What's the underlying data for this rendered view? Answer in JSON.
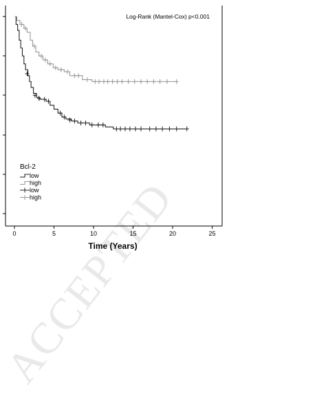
{
  "watermark": "ACCEPTED",
  "chart_data": {
    "type": "line",
    "subtype": "kaplan-meier",
    "xlabel": "Time (Years)",
    "ylabel": "",
    "xlim": [
      0,
      25
    ],
    "xticks": [
      0,
      5,
      10,
      15,
      20,
      25
    ],
    "ylim": [
      0,
      1
    ],
    "annotation": "Log-Rank (Mantel-Cox) p<0.001",
    "legend": {
      "title": "Bcl-2",
      "position": "bottom-left",
      "entries": [
        {
          "label": "low",
          "style": "step",
          "color": "#222222"
        },
        {
          "label": "high",
          "style": "step",
          "color": "#999999"
        },
        {
          "label": "low",
          "style": "censored",
          "color": "#222222"
        },
        {
          "label": "high",
          "style": "censored",
          "color": "#999999"
        }
      ]
    },
    "series": [
      {
        "name": "low",
        "color": "#222222",
        "steps": [
          [
            0,
            1.0
          ],
          [
            0.2,
            0.96
          ],
          [
            0.4,
            0.93
          ],
          [
            0.6,
            0.88
          ],
          [
            0.8,
            0.84
          ],
          [
            1.0,
            0.8
          ],
          [
            1.2,
            0.76
          ],
          [
            1.4,
            0.73
          ],
          [
            1.7,
            0.7
          ],
          [
            1.9,
            0.67
          ],
          [
            2.1,
            0.64
          ],
          [
            2.4,
            0.61
          ],
          [
            2.8,
            0.59
          ],
          [
            3.2,
            0.58
          ],
          [
            4.0,
            0.57
          ],
          [
            4.5,
            0.55
          ],
          [
            5.0,
            0.53
          ],
          [
            5.5,
            0.51
          ],
          [
            6.0,
            0.49
          ],
          [
            6.5,
            0.48
          ],
          [
            7.2,
            0.47
          ],
          [
            8.0,
            0.46
          ],
          [
            9.5,
            0.45
          ],
          [
            11.5,
            0.44
          ],
          [
            12.5,
            0.43
          ],
          [
            21.8,
            0.43
          ]
        ],
        "censored": [
          [
            1.6,
            0.71
          ],
          [
            2.6,
            0.6
          ],
          [
            3.1,
            0.585
          ],
          [
            3.8,
            0.58
          ],
          [
            4.3,
            0.57
          ],
          [
            5.8,
            0.51
          ],
          [
            6.3,
            0.49
          ],
          [
            7.0,
            0.475
          ],
          [
            7.6,
            0.47
          ],
          [
            8.4,
            0.46
          ],
          [
            9.0,
            0.46
          ],
          [
            9.8,
            0.45
          ],
          [
            10.6,
            0.45
          ],
          [
            11.2,
            0.45
          ],
          [
            12.9,
            0.43
          ],
          [
            13.4,
            0.43
          ],
          [
            14.0,
            0.43
          ],
          [
            14.6,
            0.43
          ],
          [
            15.3,
            0.43
          ],
          [
            16.0,
            0.43
          ],
          [
            17.1,
            0.43
          ],
          [
            17.9,
            0.43
          ],
          [
            18.7,
            0.43
          ],
          [
            19.6,
            0.43
          ],
          [
            20.5,
            0.43
          ],
          [
            21.8,
            0.43
          ]
        ]
      },
      {
        "name": "high",
        "color": "#999999",
        "steps": [
          [
            0,
            1.0
          ],
          [
            0.3,
            0.98
          ],
          [
            0.7,
            0.96
          ],
          [
            1.2,
            0.94
          ],
          [
            1.6,
            0.92
          ],
          [
            2.0,
            0.88
          ],
          [
            2.3,
            0.85
          ],
          [
            2.7,
            0.82
          ],
          [
            3.1,
            0.8
          ],
          [
            3.6,
            0.78
          ],
          [
            4.2,
            0.76
          ],
          [
            4.9,
            0.74
          ],
          [
            5.5,
            0.73
          ],
          [
            6.3,
            0.72
          ],
          [
            7.0,
            0.7
          ],
          [
            8.6,
            0.68
          ],
          [
            9.8,
            0.67
          ],
          [
            20.5,
            0.67
          ]
        ],
        "censored": [
          [
            0.9,
            0.96
          ],
          [
            1.4,
            0.94
          ],
          [
            2.5,
            0.85
          ],
          [
            3.4,
            0.8
          ],
          [
            3.9,
            0.78
          ],
          [
            4.5,
            0.76
          ],
          [
            5.2,
            0.74
          ],
          [
            5.9,
            0.73
          ],
          [
            6.7,
            0.72
          ],
          [
            7.6,
            0.7
          ],
          [
            8.1,
            0.7
          ],
          [
            9.2,
            0.68
          ],
          [
            10.2,
            0.67
          ],
          [
            10.7,
            0.67
          ],
          [
            11.3,
            0.67
          ],
          [
            11.8,
            0.67
          ],
          [
            12.4,
            0.67
          ],
          [
            13.0,
            0.67
          ],
          [
            13.6,
            0.67
          ],
          [
            14.4,
            0.67
          ],
          [
            15.2,
            0.67
          ],
          [
            16.0,
            0.67
          ],
          [
            16.8,
            0.67
          ],
          [
            17.6,
            0.67
          ],
          [
            18.4,
            0.67
          ],
          [
            19.3,
            0.67
          ],
          [
            20.5,
            0.67
          ]
        ]
      }
    ]
  }
}
